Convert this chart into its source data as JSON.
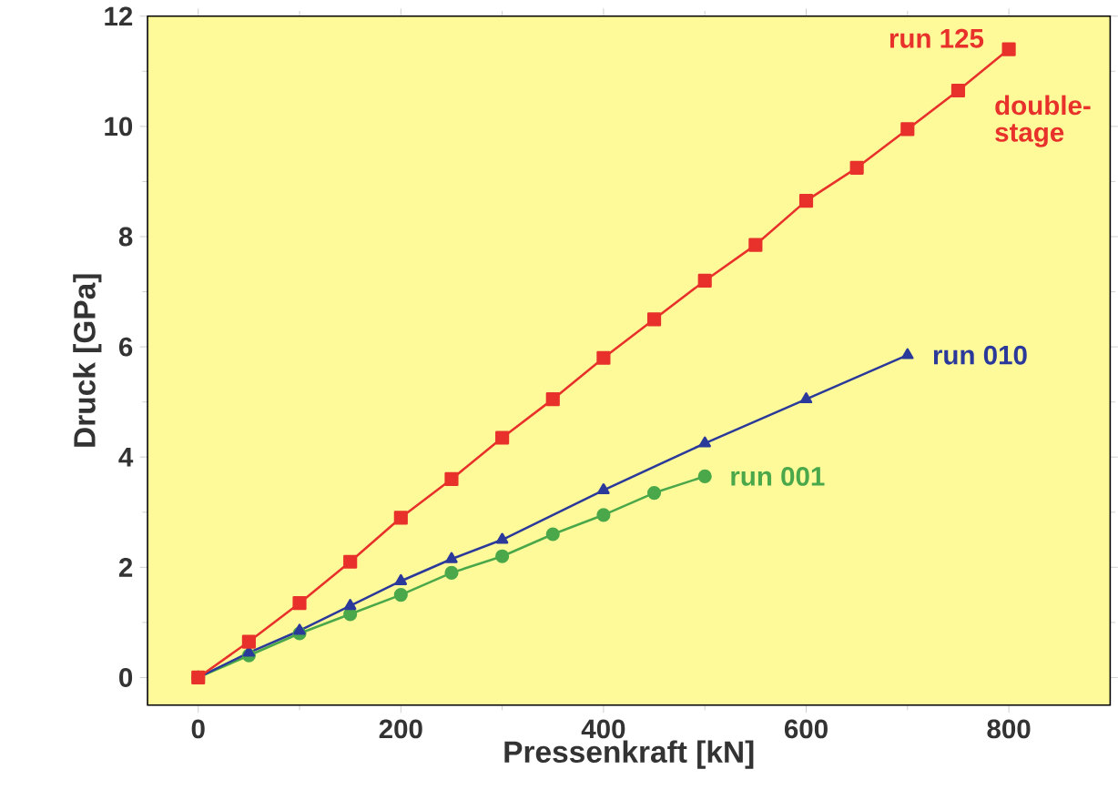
{
  "chart_data": {
    "type": "line",
    "xlabel": "Pressenkraft [kN]",
    "ylabel": "Druck [GPa]",
    "xlim": [
      -50,
      900
    ],
    "ylim": [
      -0.5,
      12
    ],
    "xticks": [
      0,
      200,
      400,
      600,
      800
    ],
    "yticks": [
      0,
      2,
      4,
      6,
      8,
      10,
      12
    ],
    "grid": false,
    "line_style": "solid",
    "series": [
      {
        "x": [
          0,
          50,
          100,
          150,
          200,
          250,
          300,
          350,
          400,
          450,
          500,
          550,
          600,
          650,
          700,
          750,
          800
        ],
        "values": [
          0,
          0.65,
          1.35,
          2.1,
          2.9,
          3.6,
          4.35,
          5.05,
          5.8,
          6.5,
          7.2,
          7.85,
          8.65,
          9.25,
          9.95,
          10.65,
          11.4
        ],
        "color": "#e8312a",
        "marker": "square"
      },
      {
        "x": [
          0,
          50,
          100,
          150,
          200,
          250,
          300,
          400,
          500,
          600,
          700
        ],
        "values": [
          0,
          0.45,
          0.85,
          1.3,
          1.75,
          2.15,
          2.5,
          3.4,
          4.25,
          5.05,
          5.85
        ],
        "color": "#2b3a9a",
        "marker": "triangle"
      },
      {
        "x": [
          0,
          50,
          100,
          150,
          200,
          250,
          300,
          350,
          400,
          450,
          500
        ],
        "values": [
          0,
          0.4,
          0.8,
          1.15,
          1.5,
          1.9,
          2.2,
          2.6,
          2.95,
          3.35,
          3.65
        ],
        "color": "#4aa84a",
        "marker": "circle"
      }
    ],
    "annotations": [
      {
        "text": "run 125",
        "x": 800,
        "y": 11.4
      },
      "double-stage",
      {
        "text": "run 010",
        "x": 700,
        "y": 5.85
      },
      {
        "text": "run 001",
        "x": 500,
        "y": 3.65
      }
    ]
  }
}
